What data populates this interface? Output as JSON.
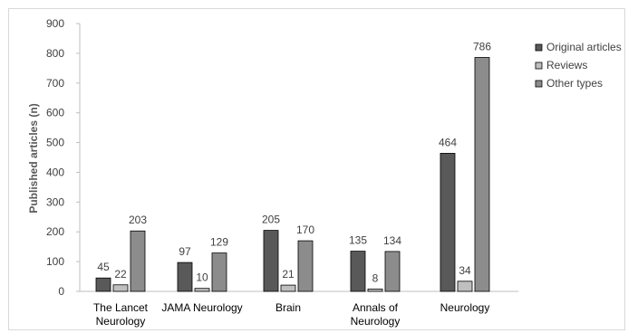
{
  "chart_data": {
    "type": "bar",
    "title": "",
    "xlabel": "",
    "ylabel": "Published articles (n)",
    "ylim": [
      0,
      900
    ],
    "yticks": [
      0,
      100,
      200,
      300,
      400,
      500,
      600,
      700,
      800,
      900
    ],
    "grid": false,
    "legend_position": "right",
    "categories": [
      [
        "The Lancet",
        "Neurology"
      ],
      [
        "JAMA Neurology"
      ],
      [
        "Brain"
      ],
      [
        "Annals of",
        "Neurology"
      ],
      [
        "Neurology"
      ]
    ],
    "series": [
      {
        "name": "Original articles",
        "color": "#595959",
        "values": [
          45,
          97,
          205,
          135,
          464
        ]
      },
      {
        "name": "Reviews",
        "color": "#bfbfbf",
        "values": [
          22,
          10,
          21,
          8,
          34
        ]
      },
      {
        "name": "Other types",
        "color": "#8c8c8c",
        "values": [
          203,
          129,
          170,
          134,
          786
        ]
      }
    ]
  }
}
